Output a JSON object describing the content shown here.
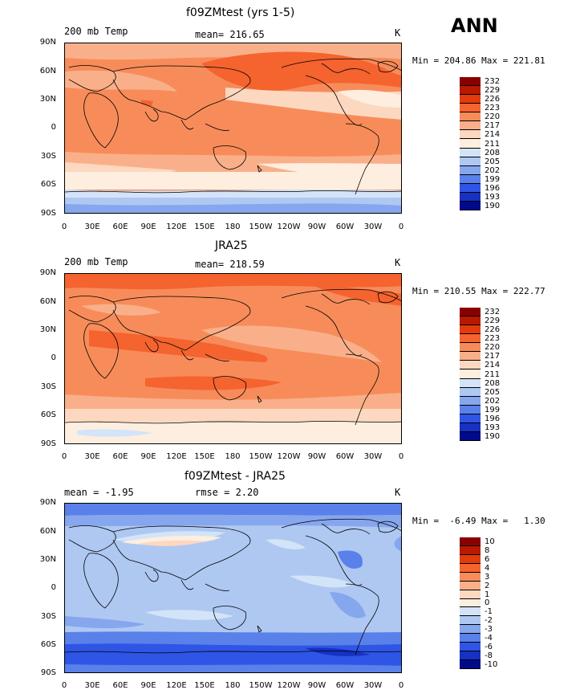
{
  "season": "ANN",
  "panels": [
    {
      "title": "f09ZMtest (yrs 1-5)",
      "left_label": "200 mb Temp",
      "center_label": "mean= 216.65",
      "units": "K",
      "minmax": "Min = 204.86 Max = 221.81",
      "colorbar": [
        "232",
        "229",
        "226",
        "223",
        "220",
        "217",
        "214",
        "211",
        "208",
        "205",
        "202",
        "199",
        "196",
        "193",
        "190"
      ]
    },
    {
      "title": "JRA25",
      "left_label": "200 mb Temp",
      "center_label": "mean= 218.59",
      "units": "K",
      "minmax": "Min = 210.55 Max = 222.77",
      "colorbar": [
        "232",
        "229",
        "226",
        "223",
        "220",
        "217",
        "214",
        "211",
        "208",
        "205",
        "202",
        "199",
        "196",
        "193",
        "190"
      ]
    },
    {
      "title": "f09ZMtest - JRA25",
      "left_label": "mean =   -1.95",
      "center_label": "rmse =    2.20",
      "units": "K",
      "minmax": "Min =  -6.49 Max =   1.30",
      "colorbar": [
        "10",
        "8",
        "6",
        "4",
        "3",
        "2",
        "1",
        "0",
        "-1",
        "-2",
        "-3",
        "-4",
        "-6",
        "-8",
        "-10"
      ]
    }
  ],
  "lat_labels": [
    "90N",
    "60N",
    "30N",
    "0",
    "30S",
    "60S",
    "90S"
  ],
  "lon_labels": [
    "0",
    "30E",
    "60E",
    "90E",
    "120E",
    "150E",
    "180",
    "150W",
    "120W",
    "90W",
    "60W",
    "30W",
    "0"
  ],
  "colors": {
    "abs_scale": [
      "#8a0000",
      "#b81a00",
      "#e33b0c",
      "#f5632f",
      "#f78c5a",
      "#f9b08a",
      "#fcd8c0",
      "#fdeedf",
      "#d4e4f8",
      "#aec8f2",
      "#86a6ee",
      "#5a80ea",
      "#2f55e6",
      "#1631c4",
      "#000a8a"
    ],
    "diff_scale": [
      "#8a0000",
      "#b81a00",
      "#e33b0c",
      "#f5632f",
      "#f78c5a",
      "#f9b08a",
      "#fcd8c0",
      "#fdeedf",
      "#d4e4f8",
      "#aec8f2",
      "#86a6ee",
      "#5a80ea",
      "#2f55e6",
      "#1631c4",
      "#000a8a"
    ]
  }
}
